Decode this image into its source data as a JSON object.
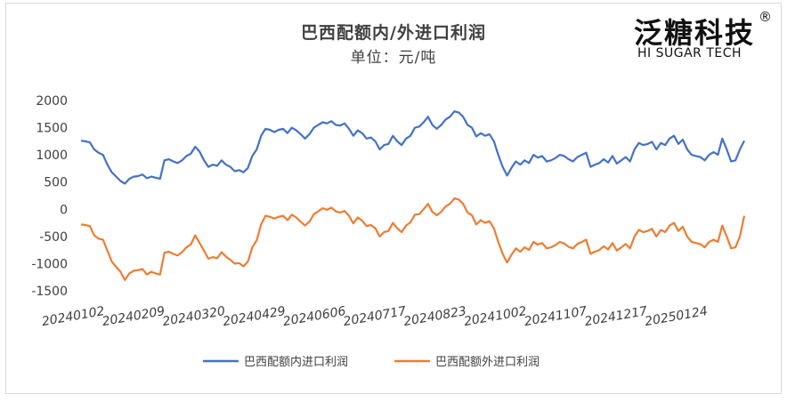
{
  "header": {
    "title": "巴西配额内/外进口利润",
    "subtitle": "单位：元/吨"
  },
  "logo": {
    "name_cn": "泛糖科技",
    "name_en": "HI SUGAR TECH",
    "mark": "®"
  },
  "chart_data": {
    "type": "line",
    "title": "巴西配额内/外进口利润",
    "subtitle": "单位：元/吨",
    "xlabel": "",
    "ylabel": "",
    "ylim": [
      -1500,
      2000
    ],
    "yticks": [
      2000,
      1500,
      1000,
      500,
      0,
      -500,
      -1000,
      -1500
    ],
    "x_tick_labels": [
      "20240102",
      "20240209",
      "20240320",
      "20240429",
      "20240606",
      "20240717",
      "20240823",
      "20241002",
      "20241107",
      "20241217",
      "20250124"
    ],
    "grid": false,
    "legend_position": "bottom",
    "colors": {
      "inner": "#4472C4",
      "outer": "#ED7D31"
    },
    "series": [
      {
        "name": "巴西配额内进口利润",
        "color": "#4472C4",
        "values": [
          1260,
          1250,
          1230,
          1100,
          1040,
          1000,
          820,
          680,
          600,
          520,
          470,
          560,
          600,
          610,
          640,
          570,
          600,
          580,
          560,
          900,
          920,
          880,
          850,
          900,
          980,
          1020,
          1150,
          1060,
          900,
          780,
          820,
          800,
          900,
          820,
          780,
          700,
          720,
          680,
          760,
          980,
          1100,
          1350,
          1480,
          1460,
          1420,
          1460,
          1480,
          1400,
          1500,
          1450,
          1380,
          1300,
          1380,
          1500,
          1550,
          1600,
          1580,
          1620,
          1550,
          1540,
          1580,
          1480,
          1350,
          1450,
          1400,
          1300,
          1320,
          1250,
          1100,
          1180,
          1200,
          1350,
          1250,
          1180,
          1300,
          1350,
          1500,
          1520,
          1600,
          1700,
          1550,
          1480,
          1550,
          1650,
          1700,
          1800,
          1780,
          1700,
          1550,
          1500,
          1340,
          1400,
          1350,
          1380,
          1250,
          1000,
          780,
          620,
          760,
          880,
          820,
          900,
          850,
          1000,
          950,
          980,
          880,
          900,
          940,
          1000,
          980,
          920,
          880,
          960,
          1000,
          1040,
          780,
          820,
          850,
          920,
          860,
          980,
          840,
          900,
          960,
          880,
          1100,
          1220,
          1180,
          1200,
          1240,
          1100,
          1220,
          1180,
          1300,
          1350,
          1200,
          1280,
          1100,
          1000,
          980,
          960,
          900,
          1000,
          1050,
          1000,
          1300,
          1100,
          880,
          900,
          1100,
          1260
        ]
      },
      {
        "name": "巴西配额外进口利润",
        "color": "#ED7D31",
        "values": [
          -280,
          -290,
          -310,
          -480,
          -540,
          -560,
          -760,
          -960,
          -1060,
          -1150,
          -1300,
          -1180,
          -1130,
          -1120,
          -1100,
          -1200,
          -1150,
          -1180,
          -1200,
          -800,
          -780,
          -820,
          -850,
          -790,
          -700,
          -650,
          -480,
          -620,
          -760,
          -910,
          -880,
          -900,
          -790,
          -870,
          -930,
          -1000,
          -990,
          -1050,
          -960,
          -700,
          -570,
          -280,
          -120,
          -140,
          -170,
          -140,
          -120,
          -200,
          -100,
          -150,
          -230,
          -300,
          -230,
          -90,
          -40,
          20,
          -10,
          30,
          -40,
          -60,
          -30,
          -120,
          -260,
          -150,
          -210,
          -310,
          -290,
          -350,
          -500,
          -420,
          -400,
          -250,
          -350,
          -420,
          -300,
          -240,
          -100,
          -90,
          0,
          100,
          -50,
          -110,
          -50,
          50,
          100,
          200,
          180,
          100,
          -60,
          -110,
          -280,
          -200,
          -250,
          -220,
          -350,
          -600,
          -820,
          -980,
          -840,
          -720,
          -780,
          -700,
          -750,
          -600,
          -650,
          -620,
          -720,
          -700,
          -660,
          -600,
          -630,
          -690,
          -720,
          -640,
          -600,
          -560,
          -820,
          -780,
          -750,
          -680,
          -740,
          -620,
          -760,
          -700,
          -640,
          -720,
          -500,
          -380,
          -420,
          -400,
          -360,
          -500,
          -380,
          -420,
          -300,
          -250,
          -400,
          -320,
          -500,
          -600,
          -620,
          -640,
          -700,
          -600,
          -560,
          -600,
          -300,
          -500,
          -720,
          -700,
          -500,
          -120
        ]
      }
    ]
  }
}
